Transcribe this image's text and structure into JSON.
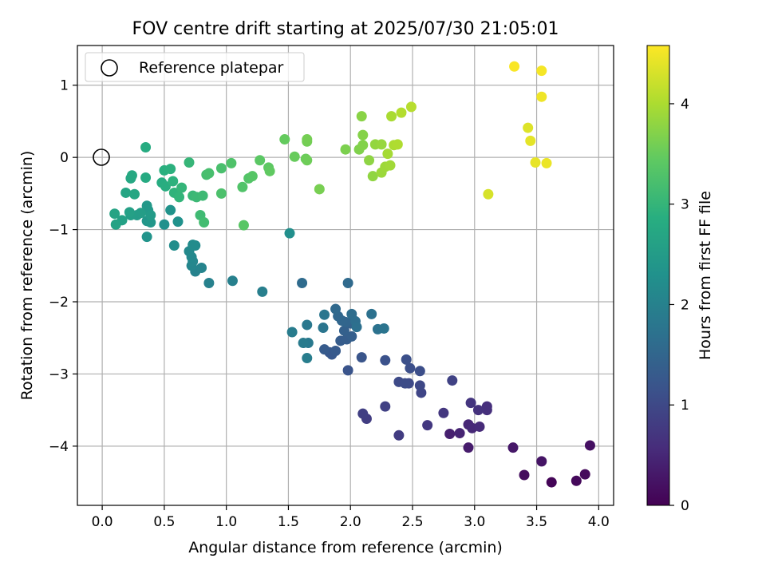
{
  "chart_data": {
    "type": "scatter",
    "title": "FOV centre drift starting at 2025/07/30 21:05:01",
    "xlabel": "Angular distance from reference (arcmin)",
    "ylabel": "Rotation from reference (arcmin)",
    "xlim": [
      -0.2,
      4.12
    ],
    "ylim": [
      -4.82,
      1.55
    ],
    "xticks": [
      0.0,
      0.5,
      1.0,
      1.5,
      2.0,
      2.5,
      3.0,
      3.5,
      4.0
    ],
    "xtick_labels": [
      "0.0",
      "0.5",
      "1.0",
      "1.5",
      "2.0",
      "2.5",
      "3.0",
      "3.5",
      "4.0"
    ],
    "yticks": [
      1,
      0,
      -1,
      -2,
      -3,
      -4
    ],
    "ytick_labels": [
      "1",
      "0",
      "−1",
      "−2",
      "−3",
      "−4"
    ],
    "grid": true,
    "legend": {
      "position": "top-left",
      "entries": [
        "Reference platepar"
      ]
    },
    "reference_point": {
      "x": 0.0,
      "y": 0.0,
      "label": "Reference platepar"
    },
    "colorbar": {
      "label": "Hours from first FF file",
      "colormap": "viridis",
      "min": 0,
      "max": 4.58,
      "ticks": [
        0,
        1,
        2,
        3,
        4
      ],
      "tick_labels": [
        "0",
        "1",
        "2",
        "3",
        "4"
      ]
    },
    "points": [
      {
        "x": 3.62,
        "y": -4.5,
        "c": 0.05
      },
      {
        "x": 3.82,
        "y": -4.48,
        "c": 0.1
      },
      {
        "x": 3.89,
        "y": -4.39,
        "c": 0.12
      },
      {
        "x": 3.4,
        "y": -4.4,
        "c": 0.15
      },
      {
        "x": 3.93,
        "y": -3.99,
        "c": 0.2
      },
      {
        "x": 3.54,
        "y": -4.21,
        "c": 0.25
      },
      {
        "x": 3.31,
        "y": -4.02,
        "c": 0.3
      },
      {
        "x": 2.95,
        "y": -4.02,
        "c": 0.35
      },
      {
        "x": 2.8,
        "y": -3.83,
        "c": 0.4
      },
      {
        "x": 2.88,
        "y": -3.82,
        "c": 0.45
      },
      {
        "x": 2.95,
        "y": -3.7,
        "c": 0.5
      },
      {
        "x": 2.98,
        "y": -3.75,
        "c": 0.52
      },
      {
        "x": 3.04,
        "y": -3.73,
        "c": 0.55
      },
      {
        "x": 3.1,
        "y": -3.45,
        "c": 0.6
      },
      {
        "x": 3.1,
        "y": -3.5,
        "c": 0.62
      },
      {
        "x": 3.03,
        "y": -3.5,
        "c": 0.65
      },
      {
        "x": 2.97,
        "y": -3.4,
        "c": 0.7
      },
      {
        "x": 2.75,
        "y": -3.54,
        "c": 0.72
      },
      {
        "x": 2.62,
        "y": -3.71,
        "c": 0.75
      },
      {
        "x": 2.39,
        "y": -3.85,
        "c": 0.8
      },
      {
        "x": 2.13,
        "y": -3.62,
        "c": 0.82
      },
      {
        "x": 2.1,
        "y": -3.55,
        "c": 0.85
      },
      {
        "x": 2.28,
        "y": -3.45,
        "c": 0.88
      },
      {
        "x": 2.82,
        "y": -3.09,
        "c": 0.9
      },
      {
        "x": 2.57,
        "y": -3.26,
        "c": 0.95
      },
      {
        "x": 2.56,
        "y": -3.16,
        "c": 0.98
      },
      {
        "x": 2.47,
        "y": -3.13,
        "c": 1.0
      },
      {
        "x": 2.39,
        "y": -3.11,
        "c": 1.02
      },
      {
        "x": 2.44,
        "y": -3.13,
        "c": 1.05
      },
      {
        "x": 2.56,
        "y": -2.96,
        "c": 1.08
      },
      {
        "x": 2.48,
        "y": -2.92,
        "c": 1.1
      },
      {
        "x": 2.45,
        "y": -2.8,
        "c": 1.12
      },
      {
        "x": 2.28,
        "y": -2.81,
        "c": 1.15
      },
      {
        "x": 1.98,
        "y": -2.95,
        "c": 1.18
      },
      {
        "x": 2.09,
        "y": -2.77,
        "c": 1.2
      },
      {
        "x": 1.83,
        "y": -2.7,
        "c": 1.22
      },
      {
        "x": 1.85,
        "y": -2.73,
        "c": 1.25
      },
      {
        "x": 1.88,
        "y": -2.68,
        "c": 1.28
      },
      {
        "x": 1.79,
        "y": -2.66,
        "c": 1.3
      },
      {
        "x": 1.92,
        "y": -2.54,
        "c": 1.32
      },
      {
        "x": 1.97,
        "y": -2.52,
        "c": 1.35
      },
      {
        "x": 2.01,
        "y": -2.48,
        "c": 1.38
      },
      {
        "x": 1.95,
        "y": -2.4,
        "c": 1.4
      },
      {
        "x": 2.0,
        "y": -2.3,
        "c": 1.42
      },
      {
        "x": 2.03,
        "y": -2.3,
        "c": 1.45
      },
      {
        "x": 1.96,
        "y": -2.28,
        "c": 1.48
      },
      {
        "x": 1.93,
        "y": -2.26,
        "c": 1.5
      },
      {
        "x": 1.9,
        "y": -2.2,
        "c": 1.52
      },
      {
        "x": 1.88,
        "y": -2.1,
        "c": 1.55
      },
      {
        "x": 1.98,
        "y": -1.74,
        "c": 1.58
      },
      {
        "x": 1.61,
        "y": -1.74,
        "c": 1.6
      },
      {
        "x": 2.01,
        "y": -2.17,
        "c": 1.62
      },
      {
        "x": 2.04,
        "y": -2.27,
        "c": 1.65
      },
      {
        "x": 2.05,
        "y": -2.35,
        "c": 1.68
      },
      {
        "x": 2.17,
        "y": -2.17,
        "c": 1.7
      },
      {
        "x": 2.22,
        "y": -2.38,
        "c": 1.72
      },
      {
        "x": 2.27,
        "y": -2.37,
        "c": 1.75
      },
      {
        "x": 1.78,
        "y": -2.36,
        "c": 1.78
      },
      {
        "x": 1.79,
        "y": -2.18,
        "c": 1.8
      },
      {
        "x": 1.65,
        "y": -2.32,
        "c": 1.82
      },
      {
        "x": 1.66,
        "y": -2.57,
        "c": 1.85
      },
      {
        "x": 1.62,
        "y": -2.57,
        "c": 1.88
      },
      {
        "x": 1.53,
        "y": -2.42,
        "c": 1.9
      },
      {
        "x": 1.65,
        "y": -2.78,
        "c": 1.92
      },
      {
        "x": 1.29,
        "y": -1.86,
        "c": 1.95
      },
      {
        "x": 1.05,
        "y": -1.71,
        "c": 1.98
      },
      {
        "x": 0.86,
        "y": -1.74,
        "c": 2.0
      },
      {
        "x": 0.75,
        "y": -1.58,
        "c": 2.02
      },
      {
        "x": 0.8,
        "y": -1.53,
        "c": 2.05
      },
      {
        "x": 0.72,
        "y": -1.5,
        "c": 2.08
      },
      {
        "x": 0.73,
        "y": -1.44,
        "c": 2.1
      },
      {
        "x": 0.72,
        "y": -1.38,
        "c": 2.12
      },
      {
        "x": 0.7,
        "y": -1.3,
        "c": 2.15
      },
      {
        "x": 0.75,
        "y": -1.22,
        "c": 2.18
      },
      {
        "x": 0.73,
        "y": -1.21,
        "c": 2.2
      },
      {
        "x": 0.58,
        "y": -1.22,
        "c": 2.22
      },
      {
        "x": 1.51,
        "y": -1.05,
        "c": 2.25
      },
      {
        "x": 0.5,
        "y": -0.93,
        "c": 2.28
      },
      {
        "x": 0.61,
        "y": -0.89,
        "c": 2.3
      },
      {
        "x": 0.55,
        "y": -0.73,
        "c": 2.32
      },
      {
        "x": 0.36,
        "y": -1.1,
        "c": 2.35
      },
      {
        "x": 0.36,
        "y": -0.88,
        "c": 2.38
      },
      {
        "x": 0.39,
        "y": -0.9,
        "c": 2.4
      },
      {
        "x": 0.36,
        "y": -0.67,
        "c": 2.42
      },
      {
        "x": 0.37,
        "y": -0.73,
        "c": 2.45
      },
      {
        "x": 0.39,
        "y": -0.8,
        "c": 2.48
      },
      {
        "x": 0.28,
        "y": -0.8,
        "c": 2.5
      },
      {
        "x": 0.31,
        "y": -0.77,
        "c": 2.52
      },
      {
        "x": 0.23,
        "y": -0.8,
        "c": 2.55
      },
      {
        "x": 0.22,
        "y": -0.76,
        "c": 2.58
      },
      {
        "x": 0.16,
        "y": -0.87,
        "c": 2.6
      },
      {
        "x": 0.11,
        "y": -0.93,
        "c": 2.62
      },
      {
        "x": 0.1,
        "y": -0.78,
        "c": 2.65
      },
      {
        "x": 0.19,
        "y": -0.49,
        "c": 2.68
      },
      {
        "x": 0.26,
        "y": -0.51,
        "c": 2.7
      },
      {
        "x": 0.23,
        "y": -0.29,
        "c": 2.72
      },
      {
        "x": 0.24,
        "y": -0.25,
        "c": 2.75
      },
      {
        "x": 0.35,
        "y": -0.28,
        "c": 2.78
      },
      {
        "x": 0.35,
        "y": 0.14,
        "c": 2.8
      },
      {
        "x": 0.48,
        "y": -0.35,
        "c": 2.82
      },
      {
        "x": 0.51,
        "y": -0.4,
        "c": 2.85
      },
      {
        "x": 0.5,
        "y": -0.18,
        "c": 2.88
      },
      {
        "x": 0.55,
        "y": -0.16,
        "c": 2.9
      },
      {
        "x": 0.57,
        "y": -0.33,
        "c": 2.92
      },
      {
        "x": 0.58,
        "y": -0.49,
        "c": 2.95
      },
      {
        "x": 0.62,
        "y": -0.55,
        "c": 2.98
      },
      {
        "x": 0.64,
        "y": -0.42,
        "c": 3.0
      },
      {
        "x": 0.7,
        "y": -0.07,
        "c": 3.02
      },
      {
        "x": 0.73,
        "y": -0.53,
        "c": 3.05
      },
      {
        "x": 0.76,
        "y": -0.55,
        "c": 3.08
      },
      {
        "x": 0.81,
        "y": -0.53,
        "c": 3.1
      },
      {
        "x": 0.79,
        "y": -0.8,
        "c": 3.12
      },
      {
        "x": 0.82,
        "y": -0.9,
        "c": 3.15
      },
      {
        "x": 0.84,
        "y": -0.24,
        "c": 3.18
      },
      {
        "x": 0.86,
        "y": -0.22,
        "c": 3.2
      },
      {
        "x": 0.96,
        "y": -0.15,
        "c": 3.22
      },
      {
        "x": 0.96,
        "y": -0.5,
        "c": 3.25
      },
      {
        "x": 1.04,
        "y": -0.08,
        "c": 3.28
      },
      {
        "x": 1.13,
        "y": -0.41,
        "c": 3.3
      },
      {
        "x": 1.18,
        "y": -0.29,
        "c": 3.32
      },
      {
        "x": 1.21,
        "y": -0.26,
        "c": 3.35
      },
      {
        "x": 1.14,
        "y": -0.94,
        "c": 3.38
      },
      {
        "x": 1.27,
        "y": -0.04,
        "c": 3.4
      },
      {
        "x": 1.34,
        "y": -0.14,
        "c": 3.42
      },
      {
        "x": 1.35,
        "y": -0.19,
        "c": 3.45
      },
      {
        "x": 1.47,
        "y": 0.25,
        "c": 3.48
      },
      {
        "x": 1.55,
        "y": 0.01,
        "c": 3.5
      },
      {
        "x": 1.64,
        "y": -0.02,
        "c": 3.52
      },
      {
        "x": 1.65,
        "y": -0.04,
        "c": 3.55
      },
      {
        "x": 1.65,
        "y": 0.22,
        "c": 3.58
      },
      {
        "x": 1.65,
        "y": 0.25,
        "c": 3.6
      },
      {
        "x": 1.75,
        "y": -0.44,
        "c": 3.62
      },
      {
        "x": 1.96,
        "y": 0.11,
        "c": 3.65
      },
      {
        "x": 2.07,
        "y": 0.11,
        "c": 3.68
      },
      {
        "x": 2.1,
        "y": 0.17,
        "c": 3.7
      },
      {
        "x": 2.1,
        "y": 0.31,
        "c": 3.72
      },
      {
        "x": 2.09,
        "y": 0.57,
        "c": 3.75
      },
      {
        "x": 2.15,
        "y": -0.04,
        "c": 3.78
      },
      {
        "x": 2.18,
        "y": -0.26,
        "c": 3.8
      },
      {
        "x": 2.2,
        "y": 0.18,
        "c": 3.82
      },
      {
        "x": 2.25,
        "y": 0.18,
        "c": 3.85
      },
      {
        "x": 2.25,
        "y": -0.21,
        "c": 3.88
      },
      {
        "x": 2.28,
        "y": -0.13,
        "c": 3.9
      },
      {
        "x": 2.32,
        "y": -0.11,
        "c": 3.92
      },
      {
        "x": 2.3,
        "y": 0.05,
        "c": 3.95
      },
      {
        "x": 2.33,
        "y": 0.57,
        "c": 3.98
      },
      {
        "x": 2.35,
        "y": 0.17,
        "c": 4.0
      },
      {
        "x": 2.38,
        "y": 0.18,
        "c": 4.02
      },
      {
        "x": 2.41,
        "y": 0.62,
        "c": 4.05
      },
      {
        "x": 2.49,
        "y": 0.7,
        "c": 4.08
      },
      {
        "x": 3.11,
        "y": -0.51,
        "c": 4.3
      },
      {
        "x": 3.43,
        "y": 0.41,
        "c": 4.35
      },
      {
        "x": 3.45,
        "y": 0.23,
        "c": 4.4
      },
      {
        "x": 3.49,
        "y": -0.07,
        "c": 4.42
      },
      {
        "x": 3.58,
        "y": -0.08,
        "c": 4.45
      },
      {
        "x": 3.54,
        "y": 0.84,
        "c": 4.48
      },
      {
        "x": 3.54,
        "y": 1.2,
        "c": 4.52
      },
      {
        "x": 3.32,
        "y": 1.26,
        "c": 4.55
      }
    ]
  }
}
